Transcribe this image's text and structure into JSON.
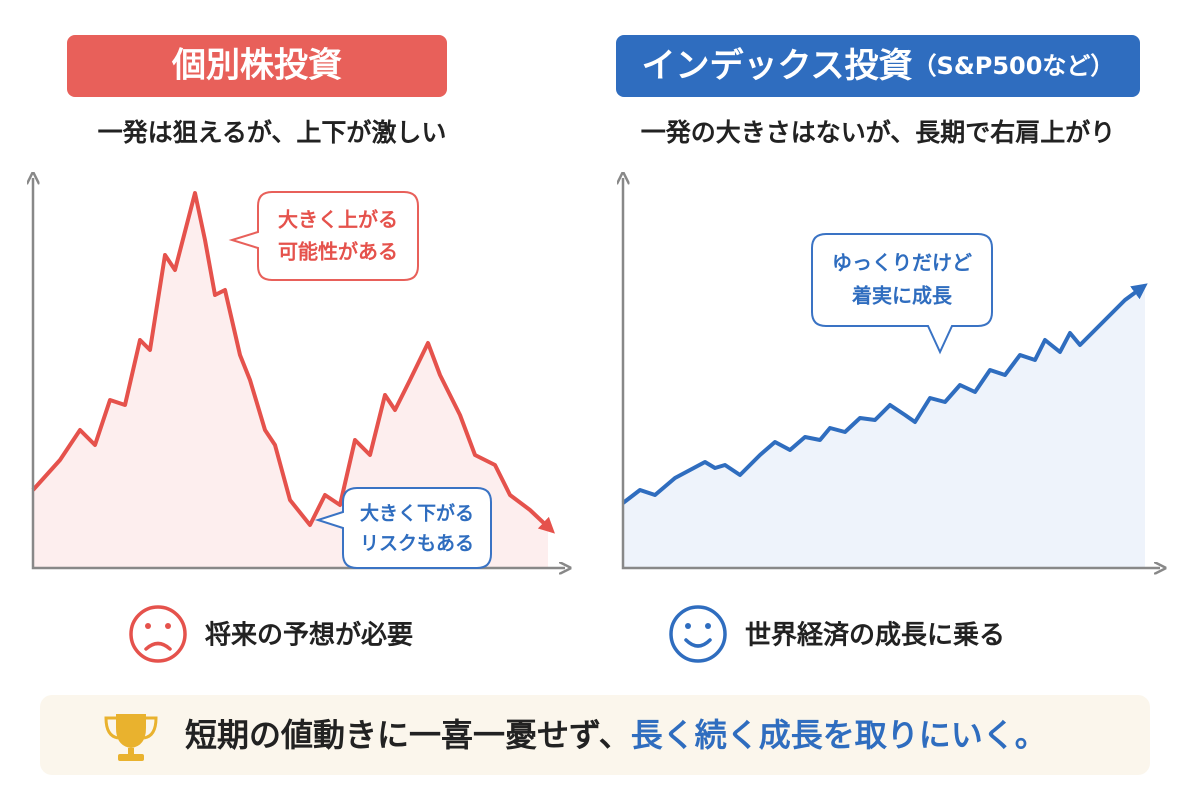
{
  "left": {
    "title": "個別株投資",
    "subtitle": "一発は狙えるが、上下が激しい",
    "callout_up": [
      "大きく上がる",
      "可能性がある"
    ],
    "callout_down": [
      "大きく下がる",
      "リスクもある"
    ],
    "note": "将来の予想が必要"
  },
  "right": {
    "title": "インデックス投資",
    "title_note": "（S&P500など）",
    "subtitle": "一発の大きさはないが、長期で右肩上がり",
    "callout": [
      "ゆっくりだけど",
      "着実に成長"
    ],
    "note": "世界経済の成長に乗る"
  },
  "footer": {
    "text": "短期の値動きに一喜一憂せず、",
    "highlight": "長く続く成長を取りにいく。"
  }
}
